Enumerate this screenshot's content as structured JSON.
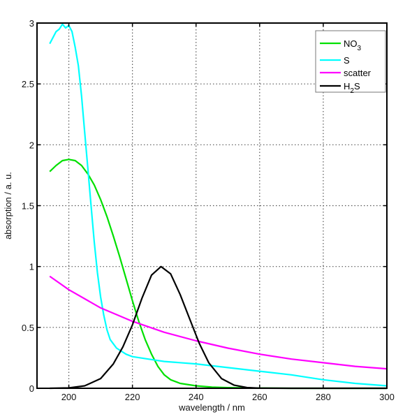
{
  "chart_data": {
    "type": "line",
    "title": "",
    "xlabel": "wavelength / nm",
    "ylabel": "absorption / a. u.",
    "xlim": [
      190,
      300
    ],
    "ylim": [
      0,
      3
    ],
    "xticks": [
      200,
      220,
      240,
      260,
      280,
      300
    ],
    "yticks": [
      0,
      0.5,
      1,
      1.5,
      2,
      2.5,
      3
    ],
    "xtick_labels": [
      "200",
      "220",
      "240",
      "260",
      "280",
      "300"
    ],
    "ytick_labels": [
      "0",
      "0.5",
      "1",
      "1.5",
      "2",
      "2.5",
      "3"
    ],
    "grid": true,
    "legend_position": "upper right",
    "series": [
      {
        "name": "NO3",
        "legend_main": "NO",
        "legend_sub": "3",
        "color": "#00e000",
        "x": [
          194,
          196,
          198,
          200,
          202,
          204,
          206,
          208,
          210,
          212,
          214,
          216,
          218,
          220,
          222,
          224,
          226,
          228,
          230,
          232,
          235,
          240,
          245,
          250,
          260,
          270,
          280,
          290,
          300
        ],
        "y": [
          1.78,
          1.83,
          1.87,
          1.88,
          1.87,
          1.83,
          1.76,
          1.67,
          1.55,
          1.41,
          1.25,
          1.08,
          0.9,
          0.72,
          0.55,
          0.4,
          0.28,
          0.18,
          0.11,
          0.07,
          0.04,
          0.02,
          0.01,
          0.005,
          0.002,
          0,
          0,
          0,
          0
        ]
      },
      {
        "name": "S",
        "legend_main": "S",
        "legend_sub": "",
        "color": "#00ffff",
        "x": [
          194,
          195,
          196,
          197,
          198,
          199,
          200,
          201,
          202,
          203,
          204,
          205,
          206,
          207,
          208,
          209,
          210,
          211,
          212,
          213,
          215,
          218,
          220,
          225,
          230,
          240,
          250,
          260,
          270,
          280,
          290,
          300
        ],
        "y": [
          2.83,
          2.88,
          2.93,
          2.95,
          2.99,
          2.96,
          2.98,
          2.93,
          2.8,
          2.65,
          2.4,
          2.1,
          1.8,
          1.5,
          1.2,
          0.95,
          0.75,
          0.6,
          0.48,
          0.4,
          0.33,
          0.28,
          0.26,
          0.24,
          0.22,
          0.2,
          0.17,
          0.14,
          0.11,
          0.07,
          0.04,
          0.02
        ]
      },
      {
        "name": "scatter",
        "legend_main": "scatter",
        "legend_sub": "",
        "color": "#ff00ff",
        "x": [
          194,
          200,
          210,
          220,
          230,
          240,
          250,
          260,
          270,
          280,
          290,
          300
        ],
        "y": [
          0.92,
          0.81,
          0.66,
          0.55,
          0.46,
          0.39,
          0.33,
          0.28,
          0.24,
          0.21,
          0.18,
          0.16
        ]
      },
      {
        "name": "H2S",
        "legend_main": "H",
        "legend_sub": "2",
        "legend_tail": "S",
        "color": "#000000",
        "x": [
          194,
          200,
          205,
          210,
          214,
          217,
          220,
          223,
          226,
          229,
          232,
          235,
          238,
          241,
          244,
          248,
          252,
          256,
          260,
          270,
          280,
          290,
          300
        ],
        "y": [
          0,
          0.003,
          0.02,
          0.08,
          0.2,
          0.34,
          0.52,
          0.74,
          0.93,
          1.0,
          0.94,
          0.77,
          0.57,
          0.37,
          0.21,
          0.08,
          0.025,
          0.006,
          0.001,
          0,
          0,
          0,
          0
        ]
      }
    ]
  }
}
